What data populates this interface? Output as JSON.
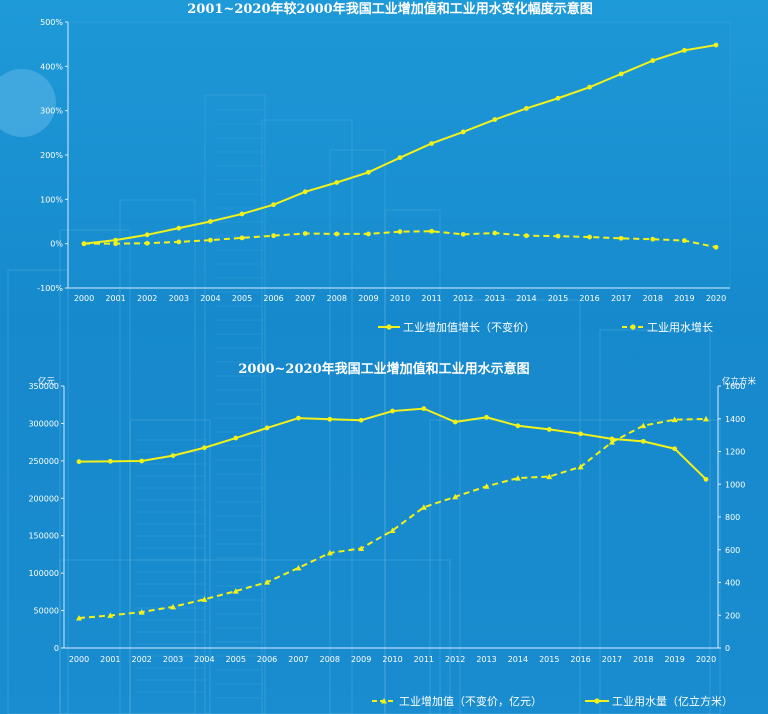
{
  "colors": {
    "series": "#f2f21a",
    "axis": "#d8ecf7",
    "grid": "#6fbde6"
  },
  "chart_data": [
    {
      "type": "line",
      "title": "2001~2020年较2000年我国工业增加值和工业用水变化幅度示意图",
      "categories": [
        "2000",
        "2001",
        "2002",
        "2003",
        "2004",
        "2005",
        "2006",
        "2007",
        "2008",
        "2009",
        "2010",
        "2011",
        "2012",
        "2013",
        "2014",
        "2015",
        "2016",
        "2017",
        "2018",
        "2019",
        "2020"
      ],
      "y_ticks": [
        "500%",
        "400%",
        "300%",
        "200%",
        "100%",
        "0%",
        "-100%"
      ],
      "ylim": [
        -100,
        500
      ],
      "series": [
        {
          "name": "工业增加值增长（不变价）",
          "style": "solid",
          "values": [
            0,
            8,
            20,
            35,
            50,
            67,
            88,
            117,
            138,
            161,
            194,
            226,
            252,
            280,
            305,
            328,
            353,
            383,
            413,
            436,
            448
          ]
        },
        {
          "name": "工业用水增长",
          "style": "dashed",
          "values": [
            0,
            0,
            1,
            4,
            8,
            13,
            18,
            23,
            22,
            22,
            27,
            28,
            21,
            24,
            18,
            17,
            15,
            12,
            10,
            7,
            -8
          ]
        }
      ],
      "legend": "bottom"
    },
    {
      "type": "line",
      "title": "2000~2020年我国工业增加值和工业用水示意图",
      "categories": [
        "2000",
        "2001",
        "2002",
        "2003",
        "2004",
        "2005",
        "2006",
        "2007",
        "2008",
        "2009",
        "2010",
        "2011",
        "2012",
        "2013",
        "2014",
        "2015",
        "2016",
        "2017",
        "2018",
        "2019",
        "2020"
      ],
      "y_left_label": "亿元",
      "y_right_label": "亿立方米",
      "y_left_ticks": [
        "350000",
        "300000",
        "250000",
        "200000",
        "150000",
        "100000",
        "50000",
        "0"
      ],
      "y_right_ticks": [
        "1600",
        "1400",
        "1200",
        "1000",
        "800",
        "600",
        "400",
        "200",
        "0"
      ],
      "ylim_left": [
        0,
        350000
      ],
      "ylim_right": [
        0,
        1600
      ],
      "series": [
        {
          "name": "工业增加值（不变价，亿元）",
          "style": "dashed",
          "axis": "left",
          "values": [
            40000,
            43500,
            48000,
            55000,
            65000,
            76000,
            88000,
            107000,
            127000,
            133000,
            157000,
            188000,
            202000,
            216000,
            227000,
            229000,
            242000,
            275000,
            297000,
            305000,
            306000
          ]
        },
        {
          "name": "工业用水量（亿立方米）",
          "style": "solid",
          "axis": "right",
          "values": [
            1138,
            1140,
            1142,
            1175,
            1223,
            1282,
            1344,
            1404,
            1397,
            1391,
            1447,
            1462,
            1380,
            1409,
            1357,
            1335,
            1308,
            1277,
            1262,
            1217,
            1030
          ]
        }
      ],
      "legend": "bottom"
    }
  ]
}
